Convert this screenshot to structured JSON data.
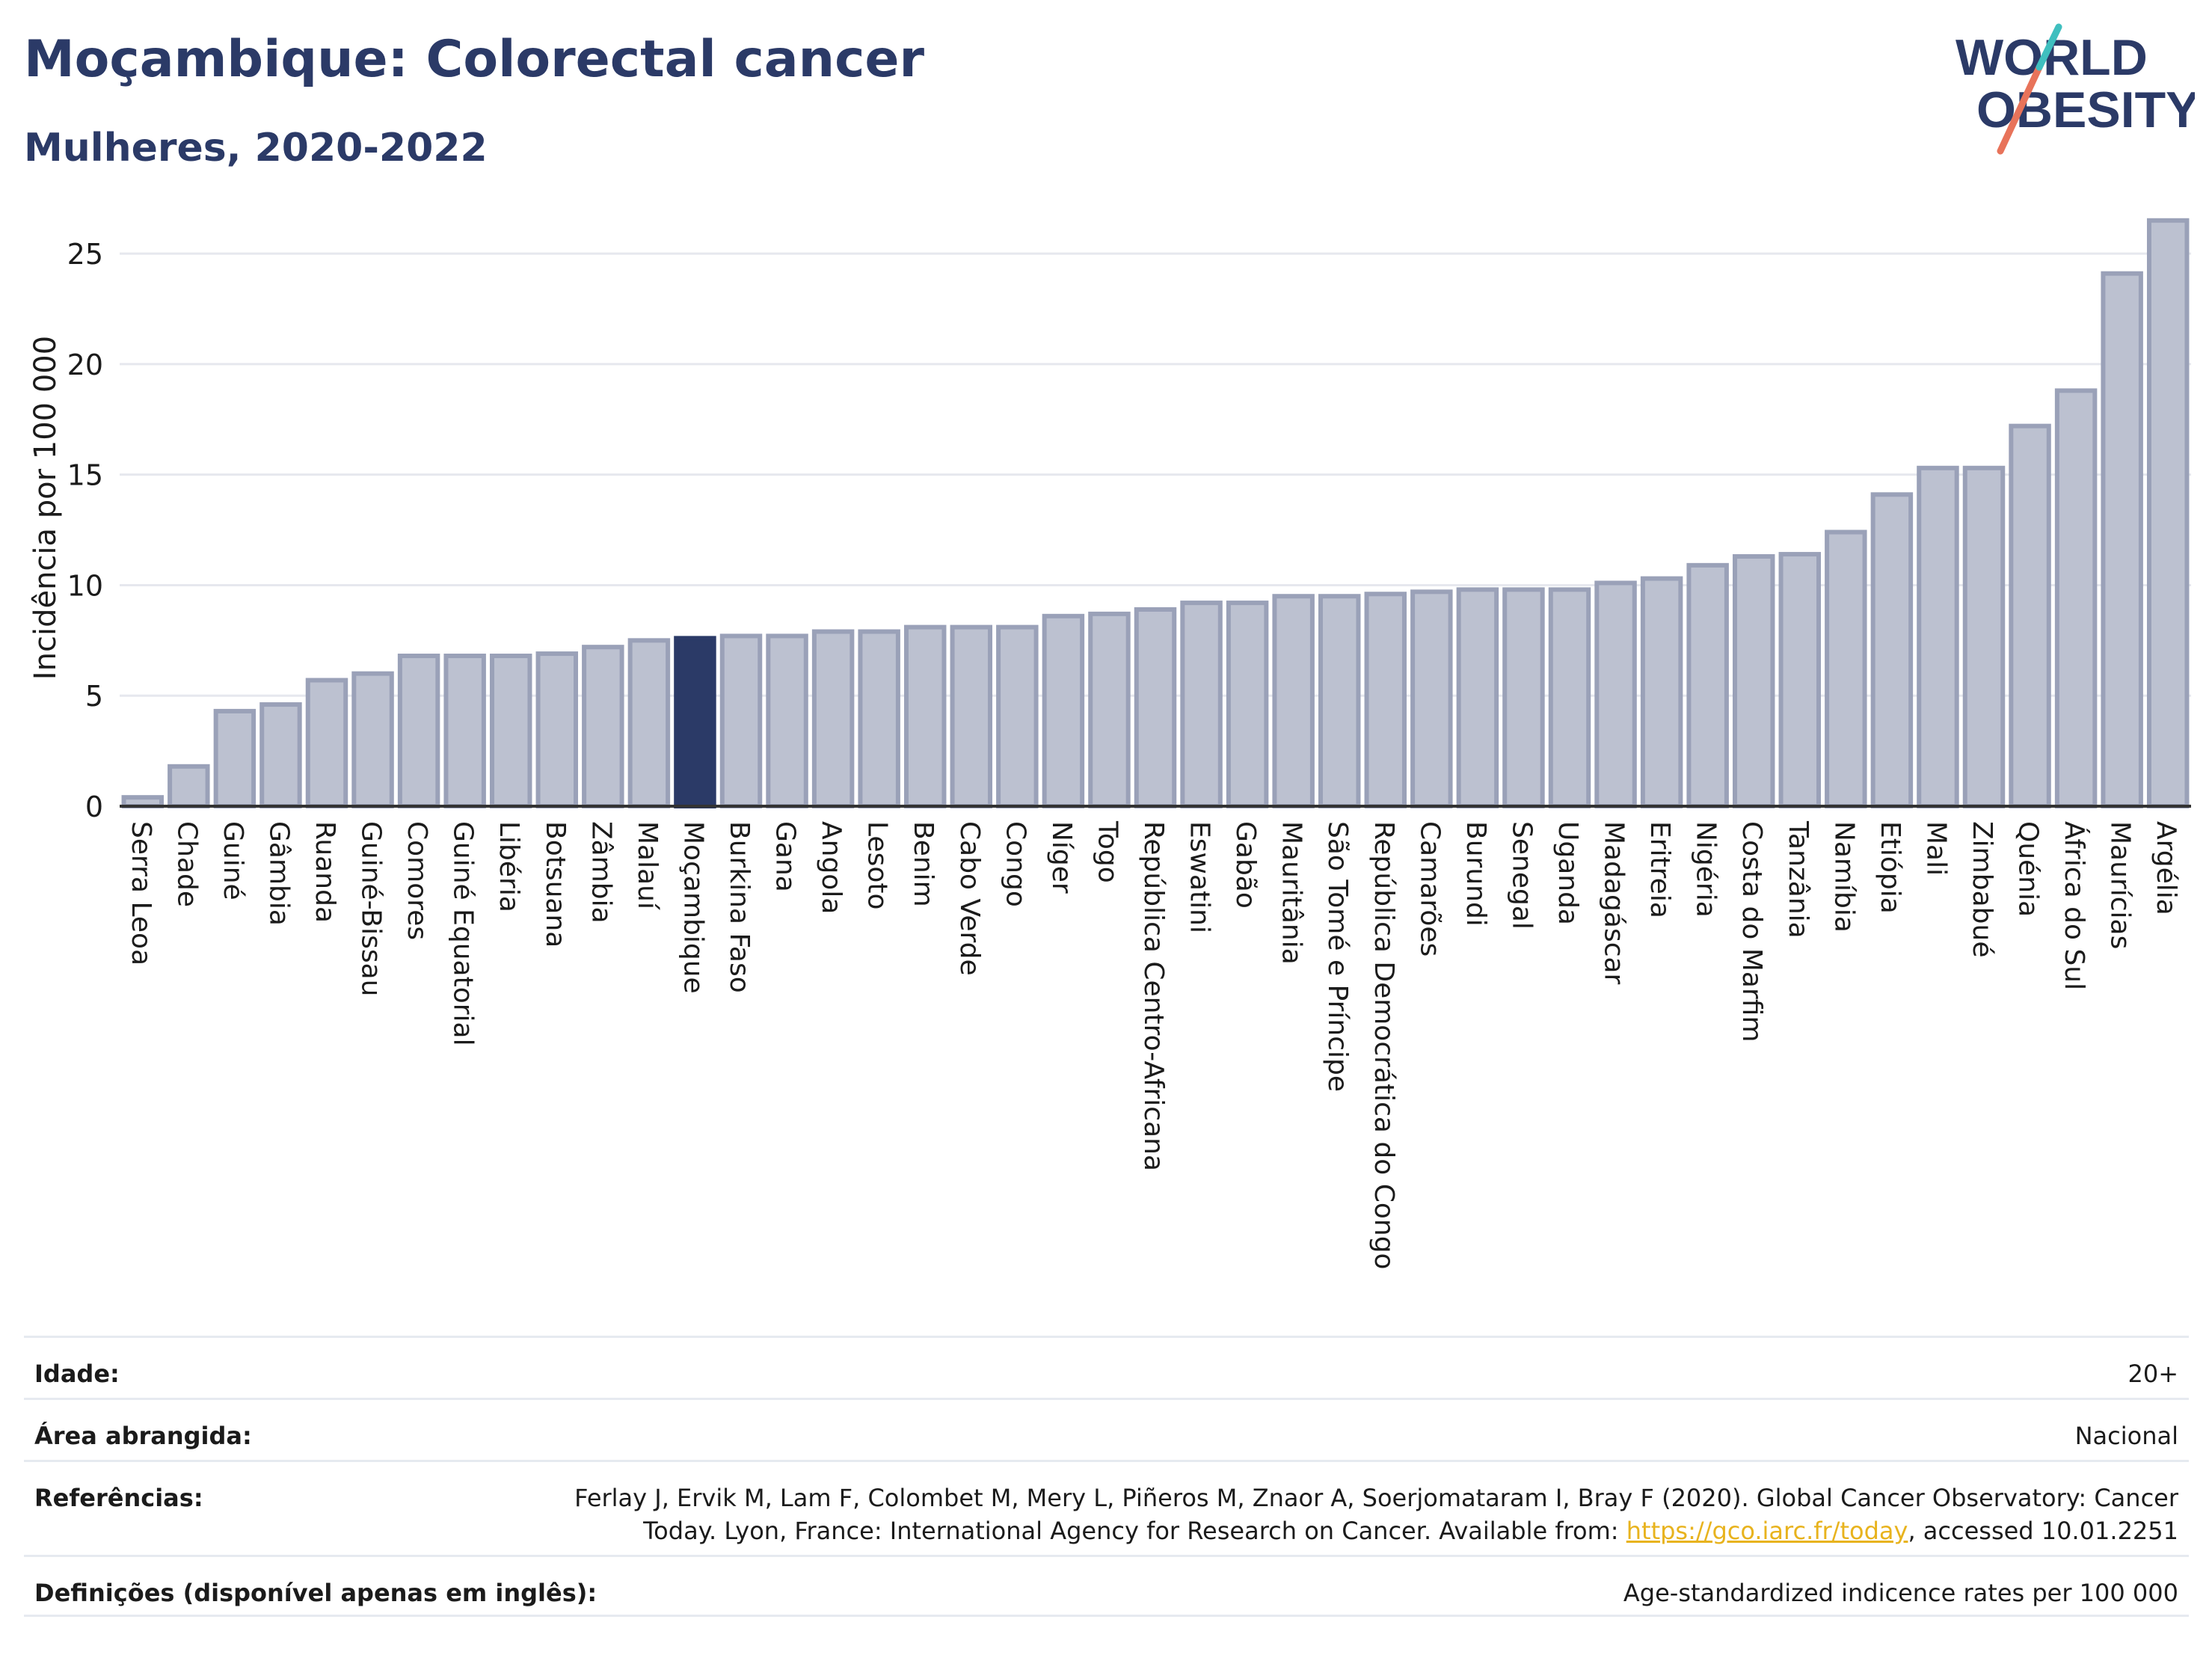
{
  "header": {
    "title": "Moçambique: Colorectal cancer",
    "subtitle": "Mulheres, 2020-2022"
  },
  "logo": {
    "line1": "WORLD",
    "line2": "OBESITY",
    "icon": "world-obesity-logo"
  },
  "colors": {
    "bar_fill": "#bcc1d0",
    "bar_stroke": "#9aa1b8",
    "highlight": "#2b3a67",
    "title": "#2b3a67",
    "grid": "#e6e8ee",
    "link": "#e8b31e"
  },
  "chart_data": {
    "type": "bar",
    "ylabel": "Incidência por 100 000",
    "xlabel": "",
    "ylim": [
      0,
      27
    ],
    "yticks": [
      0,
      5,
      10,
      15,
      20,
      25
    ],
    "grid": true,
    "highlight": "Moçambique",
    "categories": [
      "Serra Leoa",
      "Chade",
      "Guiné",
      "Gâmbia",
      "Ruanda",
      "Guiné-Bissau",
      "Comores",
      "Guiné Equatorial",
      "Libéria",
      "Botsuana",
      "Zâmbia",
      "Malauí",
      "Moçambique",
      "Burkina Faso",
      "Gana",
      "Angola",
      "Lesoto",
      "Benim",
      "Cabo Verde",
      "Congo",
      "Níger",
      "Togo",
      "República Centro-Africana",
      "Eswatini",
      "Gabão",
      "Mauritânia",
      "São Tomé e Príncipe",
      "República Democrática do Congo",
      "Camarões",
      "Burundi",
      "Senegal",
      "Uganda",
      "Madagáscar",
      "Eritreia",
      "Nigéria",
      "Costa do Marfim",
      "Tanzânia",
      "Namíbia",
      "Etiópia",
      "Mali",
      "Zimbabué",
      "Quénia",
      "África do Sul",
      "Maurícias",
      "Argélia"
    ],
    "values": [
      0.4,
      1.8,
      4.3,
      4.6,
      5.7,
      6.0,
      6.8,
      6.8,
      6.8,
      6.9,
      7.2,
      7.5,
      7.6,
      7.7,
      7.7,
      7.9,
      7.9,
      8.1,
      8.1,
      8.1,
      8.6,
      8.7,
      8.9,
      9.2,
      9.2,
      9.5,
      9.5,
      9.6,
      9.7,
      9.8,
      9.8,
      9.8,
      10.1,
      10.3,
      10.9,
      11.3,
      11.4,
      12.4,
      14.1,
      15.3,
      15.3,
      17.2,
      18.8,
      24.1,
      26.5
    ]
  },
  "meta": {
    "age_label": "Idade:",
    "age_value": "20+",
    "area_label": "Área abrangida:",
    "area_value": "Nacional",
    "refs_label": "Referências:",
    "refs_text_1": "Ferlay J, Ervik M, Lam F, Colombet M, Mery L, Piñeros M, Znaor A, Soerjomataram I, Bray F (2020). Global Cancer Observatory: Cancer Today. Lyon, France: International Agency for Research on Cancer. Available from: ",
    "refs_link": "https://gco.iarc.fr/today",
    "refs_text_2": ", accessed 10.01.2251",
    "defs_label": "Definições (disponível apenas em inglês):",
    "defs_value": "Age-standardized indicence rates per 100 000"
  }
}
